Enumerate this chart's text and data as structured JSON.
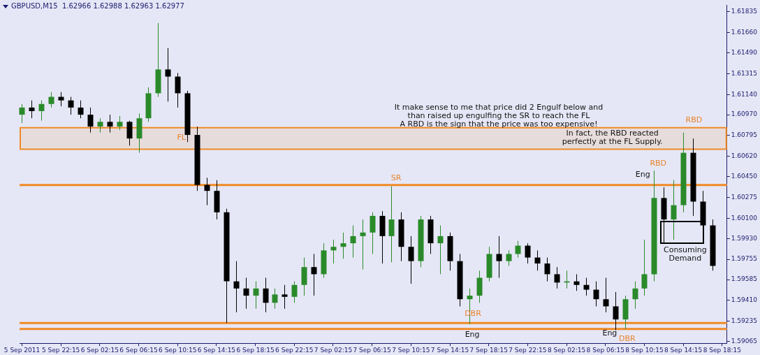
{
  "chart_data": {
    "type": "candlestick",
    "title": "GBPUSD,M15  1.62966 1.62988 1.62963 1.62977",
    "x": [
      "2011-09-05T18:15",
      "2011-09-05T19:15",
      "2011-09-05T20:15",
      "2011-09-05T21:15",
      "2011-09-05T22:15",
      "2011-09-05T23:15",
      "2011-09-06T00:15",
      "2011-09-06T01:15",
      "2011-09-06T02:15",
      "2011-09-06T03:15",
      "2011-09-06T04:15",
      "2011-09-06T05:15",
      "2011-09-06T06:15",
      "2011-09-06T07:15",
      "2011-09-06T08:15",
      "2011-09-06T09:15",
      "2011-09-06T10:15",
      "2011-09-06T11:15",
      "2011-09-06T12:15",
      "2011-09-06T13:15",
      "2011-09-06T14:15",
      "2011-09-06T15:15",
      "2011-09-06T16:15",
      "2011-09-06T17:15",
      "2011-09-06T18:15",
      "2011-09-06T19:15",
      "2011-09-06T20:15",
      "2011-09-06T21:15",
      "2011-09-06T22:15",
      "2011-09-06T23:15",
      "2011-09-07T00:15",
      "2011-09-07T01:15",
      "2011-09-07T02:15",
      "2011-09-07T03:15",
      "2011-09-07T04:15",
      "2011-09-07T05:15",
      "2011-09-07T06:15",
      "2011-09-07T07:15",
      "2011-09-07T08:15",
      "2011-09-07T09:15",
      "2011-09-07T10:15",
      "2011-09-07T11:15",
      "2011-09-07T12:15",
      "2011-09-07T13:15",
      "2011-09-07T14:15",
      "2011-09-07T15:15",
      "2011-09-07T16:15",
      "2011-09-07T17:15",
      "2011-09-07T18:15",
      "2011-09-07T19:15",
      "2011-09-07T20:15",
      "2011-09-07T21:15",
      "2011-09-07T22:15",
      "2011-09-07T23:15",
      "2011-09-08T00:15",
      "2011-09-08T01:15",
      "2011-09-08T02:15",
      "2011-09-08T03:15",
      "2011-09-08T04:15",
      "2011-09-08T05:15",
      "2011-09-08T06:15",
      "2011-09-08T07:15",
      "2011-09-08T08:15",
      "2011-09-08T09:15",
      "2011-09-08T10:15",
      "2011-09-08T11:15",
      "2011-09-08T12:15",
      "2011-09-08T13:15",
      "2011-09-08T14:15",
      "2011-09-08T15:15",
      "2011-09-08T16:15",
      "2011-09-08T17:15"
    ],
    "ohlc": [
      [
        1.6097,
        1.6106,
        1.609,
        1.6103
      ],
      [
        1.6103,
        1.6109,
        1.6094,
        1.61
      ],
      [
        1.61,
        1.6109,
        1.6092,
        1.6106
      ],
      [
        1.6106,
        1.6116,
        1.6103,
        1.6112
      ],
      [
        1.6112,
        1.6116,
        1.6104,
        1.6109
      ],
      [
        1.6109,
        1.6112,
        1.6097,
        1.6103
      ],
      [
        1.6103,
        1.6109,
        1.6094,
        1.6097
      ],
      [
        1.6097,
        1.6103,
        1.6082,
        1.6087
      ],
      [
        1.6087,
        1.6094,
        1.6082,
        1.6091
      ],
      [
        1.6091,
        1.6097,
        1.6082,
        1.6087
      ],
      [
        1.6087,
        1.6096,
        1.6084,
        1.6091
      ],
      [
        1.6091,
        1.6092,
        1.6071,
        1.6077
      ],
      [
        1.6077,
        1.6098,
        1.6065,
        1.6094
      ],
      [
        1.6094,
        1.612,
        1.6091,
        1.6115
      ],
      [
        1.6115,
        1.6174,
        1.6112,
        1.6135
      ],
      [
        1.6135,
        1.6153,
        1.6108,
        1.6129
      ],
      [
        1.6129,
        1.6132,
        1.6103,
        1.6115
      ],
      [
        1.6115,
        1.6117,
        1.6074,
        1.608
      ],
      [
        1.608,
        1.6087,
        1.6033,
        1.6038
      ],
      [
        1.6038,
        1.6044,
        1.6021,
        1.6033
      ],
      [
        1.6033,
        1.6042,
        1.6009,
        1.6015
      ],
      [
        1.6015,
        1.6018,
        1.5922,
        1.5957
      ],
      [
        1.5957,
        1.5974,
        1.5931,
        1.5951
      ],
      [
        1.5951,
        1.596,
        1.5934,
        1.5945
      ],
      [
        1.5945,
        1.5957,
        1.5934,
        1.5951
      ],
      [
        1.5951,
        1.596,
        1.5931,
        1.5939
      ],
      [
        1.5939,
        1.5951,
        1.5934,
        1.5946
      ],
      [
        1.5946,
        1.5954,
        1.5934,
        1.5944
      ],
      [
        1.5944,
        1.5957,
        1.5939,
        1.5954
      ],
      [
        1.5954,
        1.5977,
        1.5945,
        1.5969
      ],
      [
        1.5969,
        1.598,
        1.5945,
        1.5963
      ],
      [
        1.5963,
        1.5989,
        1.596,
        1.5983
      ],
      [
        1.5983,
        1.5992,
        1.5972,
        1.5986
      ],
      [
        1.5986,
        1.5998,
        1.5976,
        1.5989
      ],
      [
        1.5989,
        1.6004,
        1.5977,
        1.5995
      ],
      [
        1.5995,
        1.6009,
        1.5967,
        1.5998
      ],
      [
        1.5998,
        1.6015,
        1.598,
        1.6012
      ],
      [
        1.6012,
        1.6016,
        1.5972,
        1.5995
      ],
      [
        1.5995,
        1.6037,
        1.5973,
        1.6009
      ],
      [
        1.6009,
        1.6015,
        1.5974,
        1.5986
      ],
      [
        1.5986,
        1.5995,
        1.5955,
        1.5974
      ],
      [
        1.5974,
        1.6012,
        1.5969,
        1.6009
      ],
      [
        1.6009,
        1.6012,
        1.598,
        1.5989
      ],
      [
        1.5989,
        1.6004,
        1.5963,
        1.5995
      ],
      [
        1.5995,
        1.5998,
        1.5966,
        1.5974
      ],
      [
        1.5974,
        1.598,
        1.5936,
        1.5942
      ],
      [
        1.5942,
        1.5951,
        1.5921,
        1.5945
      ],
      [
        1.5945,
        1.5966,
        1.5939,
        1.596
      ],
      [
        1.596,
        1.5986,
        1.5957,
        1.598
      ],
      [
        1.598,
        1.5995,
        1.596,
        1.5974
      ],
      [
        1.5974,
        1.5983,
        1.597,
        1.598
      ],
      [
        1.598,
        1.5991,
        1.5977,
        1.5987
      ],
      [
        1.5987,
        1.5989,
        1.5972,
        1.5977
      ],
      [
        1.5977,
        1.5983,
        1.5966,
        1.5972
      ],
      [
        1.5972,
        1.5977,
        1.5957,
        1.5963
      ],
      [
        1.5963,
        1.5969,
        1.5951,
        1.5956
      ],
      [
        1.5956,
        1.5966,
        1.5951,
        1.5957
      ],
      [
        1.5957,
        1.5963,
        1.5949,
        1.5954
      ],
      [
        1.5954,
        1.596,
        1.5945,
        1.595
      ],
      [
        1.595,
        1.5957,
        1.5936,
        1.5942
      ],
      [
        1.5942,
        1.596,
        1.5931,
        1.5936
      ],
      [
        1.5936,
        1.5948,
        1.5916,
        1.5925
      ],
      [
        1.5925,
        1.5945,
        1.5917,
        1.5942
      ],
      [
        1.5942,
        1.5957,
        1.5934,
        1.5951
      ],
      [
        1.5951,
        1.5992,
        1.5945,
        1.5963
      ],
      [
        1.5963,
        1.605,
        1.5957,
        1.6027
      ],
      [
        1.6027,
        1.6036,
        1.5989,
        1.6009
      ],
      [
        1.6009,
        1.6042,
        1.5992,
        1.6021
      ],
      [
        1.6021,
        1.6082,
        1.6015,
        1.6065
      ],
      [
        1.6065,
        1.6077,
        1.6012,
        1.6024
      ],
      [
        1.6024,
        1.6033,
        1.5998,
        1.6004
      ],
      [
        1.6004,
        1.6009,
        1.5966,
        1.597
      ]
    ],
    "colors": [
      "#2a8a2a",
      "#000000",
      "#2a8a2a",
      "#2a8a2a",
      "#000000",
      "#000000",
      "#000000",
      "#000000",
      "#2a8a2a",
      "#000000",
      "#2a8a2a",
      "#000000",
      "#2a8a2a",
      "#2a8a2a",
      "#2a8a2a",
      "#000000",
      "#000000",
      "#000000",
      "#000000",
      "#000000",
      "#000000",
      "#000000",
      "#000000",
      "#000000",
      "#2a8a2a",
      "#000000",
      "#2a8a2a",
      "#000000",
      "#2a8a2a",
      "#2a8a2a",
      "#000000",
      "#2a8a2a",
      "#2a8a2a",
      "#2a8a2a",
      "#2a8a2a",
      "#2a8a2a",
      "#2a8a2a",
      "#000000",
      "#2a8a2a",
      "#000000",
      "#000000",
      "#2a8a2a",
      "#000000",
      "#2a8a2a",
      "#000000",
      "#000000",
      "#2a8a2a",
      "#2a8a2a",
      "#2a8a2a",
      "#000000",
      "#2a8a2a",
      "#2a8a2a",
      "#000000",
      "#000000",
      "#000000",
      "#000000",
      "#2a8a2a",
      "#000000",
      "#000000",
      "#000000",
      "#000000",
      "#000000",
      "#2a8a2a",
      "#2a8a2a",
      "#2a8a2a",
      "#2a8a2a",
      "#000000",
      "#2a8a2a",
      "#2a8a2a",
      "#000000",
      "#000000",
      "#000000"
    ],
    "xlim": [
      "2011-09-05T18:00",
      "2011-09-08T18:45"
    ],
    "xticks": [
      {
        "value": "2011-09-05T18:15",
        "label": "5 Sep 2011"
      },
      {
        "value": "2011-09-05T22:15",
        "label": "5 Sep 22:15"
      },
      {
        "value": "2011-09-06T02:15",
        "label": "6 Sep 02:15"
      },
      {
        "value": "2011-09-06T06:15",
        "label": "6 Sep 06:15"
      },
      {
        "value": "2011-09-06T10:15",
        "label": "6 Sep 10:15"
      },
      {
        "value": "2011-09-06T14:15",
        "label": "6 Sep 14:15"
      },
      {
        "value": "2011-09-06T18:15",
        "label": "6 Sep 18:15"
      },
      {
        "value": "2011-09-06T22:15",
        "label": "6 Sep 22:15"
      },
      {
        "value": "2011-09-07T02:15",
        "label": "7 Sep 02:15"
      },
      {
        "value": "2011-09-07T06:15",
        "label": "7 Sep 06:15"
      },
      {
        "value": "2011-09-07T10:15",
        "label": "7 Sep 10:15"
      },
      {
        "value": "2011-09-07T14:15",
        "label": "7 Sep 14:15"
      },
      {
        "value": "2011-09-07T18:15",
        "label": "7 Sep 18:15"
      },
      {
        "value": "2011-09-07T22:15",
        "label": "7 Sep 22:15"
      },
      {
        "value": "2011-09-08T02:15",
        "label": "8 Sep 02:15"
      },
      {
        "value": "2011-09-08T06:15",
        "label": "8 Sep 06:15"
      },
      {
        "value": "2011-09-08T10:15",
        "label": "8 Sep 10:15"
      },
      {
        "value": "2011-09-08T14:15",
        "label": "8 Sep 14:15"
      },
      {
        "value": "2011-09-08T18:15",
        "label": "8 Sep 18:15"
      }
    ],
    "ylim": [
      1.5905,
      1.6189
    ],
    "yticks": [
      1.61835,
      {
        "value": 1.6166,
        "label": "1.61660"
      },
      {
        "value": 1.6149,
        "label": "1.61490"
      },
      1.61315,
      {
        "value": 1.6114,
        "label": "1.61140"
      },
      {
        "value": 1.6097,
        "label": "1.60970"
      },
      1.60795,
      {
        "value": 1.6062,
        "label": "1.60620"
      },
      {
        "value": 1.6045,
        "label": "1.60450"
      },
      1.60275,
      {
        "value": 1.601,
        "label": "1.60100"
      },
      {
        "value": 1.5993,
        "label": "1.59930"
      },
      1.59755,
      1.59585,
      {
        "value": 1.5941,
        "label": "1.59410"
      },
      1.59235,
      1.59065
    ],
    "grid": false,
    "legend": false,
    "ref_lines": [
      {
        "axis": "y",
        "value": 1.6038,
        "color": "#f08a24"
      },
      {
        "axis": "y",
        "value": 1.5922,
        "color": "#f08a24"
      },
      {
        "axis": "y",
        "value": 1.5917,
        "color": "#f08a24"
      }
    ],
    "bands": [
      {
        "axis": "y",
        "from": 1.6068,
        "to": 1.6086,
        "color": "#f08a24"
      }
    ],
    "annotations": [
      "It make sense to me that price did 2 Engulf below and\nthan raised up engulfing the SR to reach the FL\nA RBD is the sign that the price was too expensive!",
      "In fact, the RBD reacted\nperfectly at the FL Supply.",
      "FL",
      "SR",
      "DBR",
      "Eng",
      "Eng",
      "DBR",
      "Eng",
      "RBD",
      "RBD",
      "Consuming\nDemand"
    ]
  }
}
